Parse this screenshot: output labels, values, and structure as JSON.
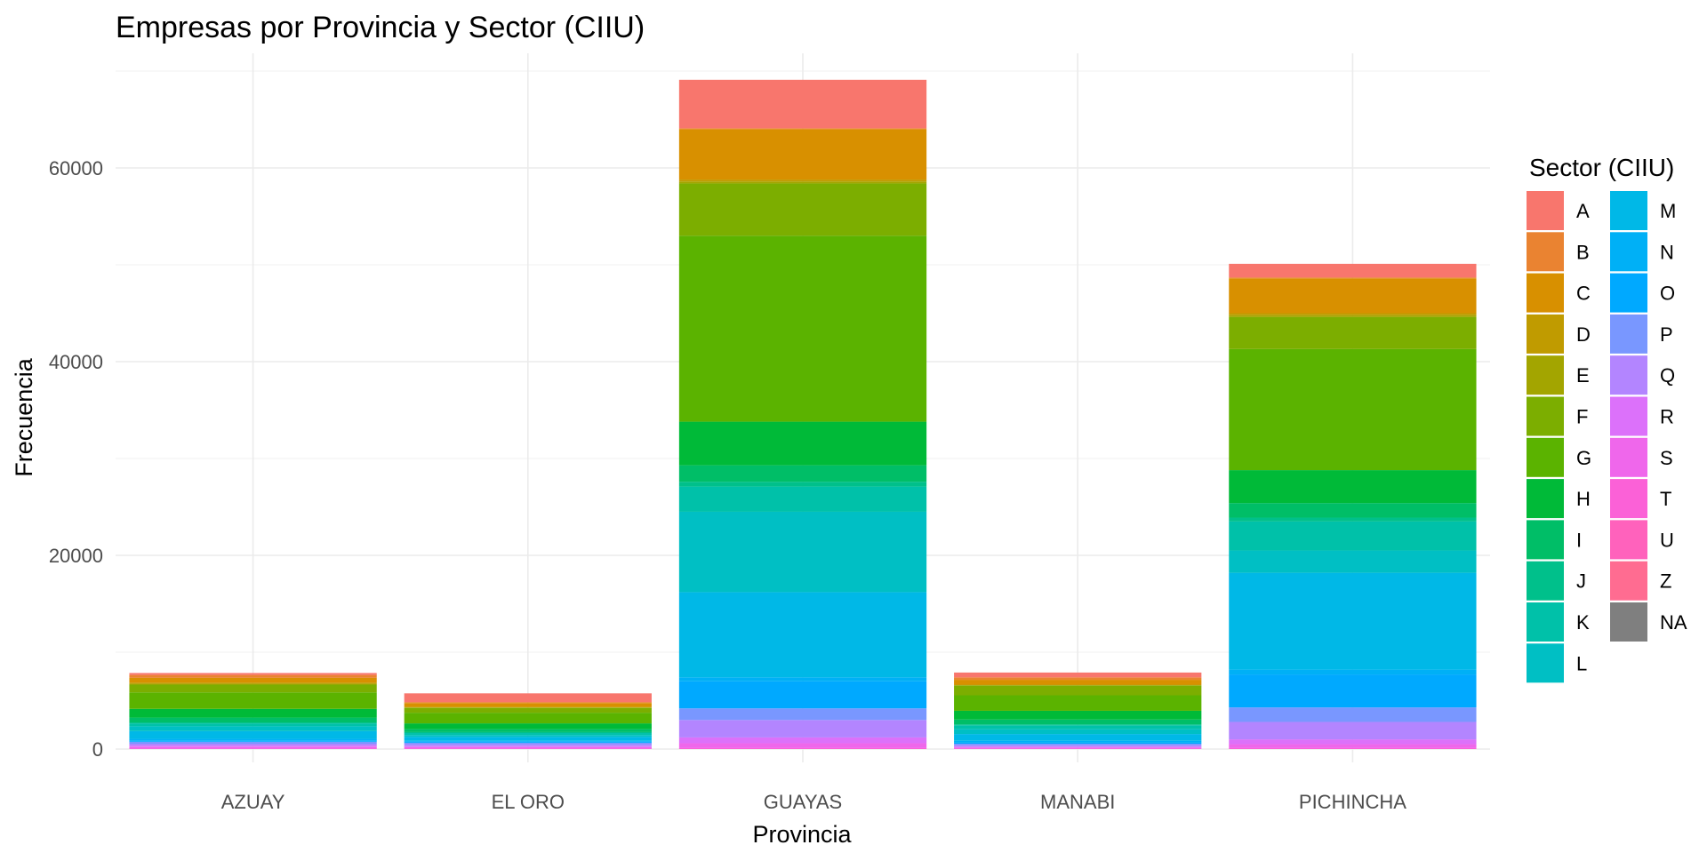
{
  "chart_data": {
    "type": "bar",
    "stacked": true,
    "title": "Empresas por Provincia y Sector (CIIU)",
    "xlabel": "Provincia",
    "ylabel": "Frecuencia",
    "categories": [
      "AZUAY",
      "EL ORO",
      "GUAYAS",
      "MANABI",
      "PICHINCHA"
    ],
    "ylim": [
      0,
      70000
    ],
    "yticks": [
      0,
      20000,
      40000,
      60000
    ],
    "grid": true,
    "legend": {
      "title": "Sector (CIIU)",
      "position": "right"
    },
    "series": [
      {
        "name": "A",
        "color": "#F8766D",
        "values": [
          200,
          900,
          5000,
          500,
          1400
        ]
      },
      {
        "name": "B",
        "color": "#EA8331",
        "values": [
          300,
          100,
          100,
          250,
          100
        ]
      },
      {
        "name": "C",
        "color": "#D89000",
        "values": [
          500,
          400,
          5200,
          500,
          3600
        ]
      },
      {
        "name": "D",
        "color": "#C09B00",
        "values": [
          100,
          50,
          200,
          50,
          200
        ]
      },
      {
        "name": "E",
        "color": "#A3A500",
        "values": [
          100,
          50,
          200,
          50,
          200
        ]
      },
      {
        "name": "F",
        "color": "#7CAE00",
        "values": [
          800,
          500,
          5400,
          1000,
          3300
        ]
      },
      {
        "name": "G",
        "color": "#5BB300",
        "values": [
          1700,
          1100,
          19200,
          1600,
          12500
        ]
      },
      {
        "name": "H",
        "color": "#00BA38",
        "values": [
          900,
          600,
          4500,
          900,
          3400
        ]
      },
      {
        "name": "I",
        "color": "#00BE67",
        "values": [
          500,
          300,
          1700,
          500,
          1500
        ]
      },
      {
        "name": "J",
        "color": "#00C08B",
        "values": [
          100,
          100,
          500,
          100,
          400
        ]
      },
      {
        "name": "K",
        "color": "#00C1A9",
        "values": [
          300,
          200,
          2600,
          400,
          3000
        ]
      },
      {
        "name": "L",
        "color": "#00BFC4",
        "values": [
          500,
          200,
          8300,
          500,
          2300
        ]
      },
      {
        "name": "M",
        "color": "#00B8E7",
        "values": [
          800,
          400,
          8800,
          700,
          10000
        ]
      },
      {
        "name": "N",
        "color": "#00B0F6",
        "values": [
          200,
          100,
          400,
          200,
          500
        ]
      },
      {
        "name": "O",
        "color": "#00A9FF",
        "values": [
          100,
          100,
          2800,
          100,
          3400
        ]
      },
      {
        "name": "P",
        "color": "#7997FF",
        "values": [
          200,
          150,
          1200,
          150,
          1500
        ]
      },
      {
        "name": "Q",
        "color": "#B385FF",
        "values": [
          200,
          200,
          1800,
          150,
          1800
        ]
      },
      {
        "name": "R",
        "color": "#DC71FA",
        "values": [
          100,
          100,
          600,
          100,
          500
        ]
      },
      {
        "name": "S",
        "color": "#EF67EB",
        "values": [
          200,
          150,
          500,
          100,
          400
        ]
      },
      {
        "name": "T",
        "color": "#FB61D7",
        "values": [
          50,
          50,
          100,
          50,
          100
        ]
      },
      {
        "name": "U",
        "color": "#FF62BC",
        "values": [
          0,
          0,
          0,
          0,
          0
        ]
      },
      {
        "name": "Z",
        "color": "#FF6C91",
        "values": [
          0,
          0,
          0,
          0,
          0
        ]
      },
      {
        "name": "NA",
        "color": "#7F7F7F",
        "values": [
          0,
          0,
          0,
          0,
          0
        ]
      }
    ]
  }
}
